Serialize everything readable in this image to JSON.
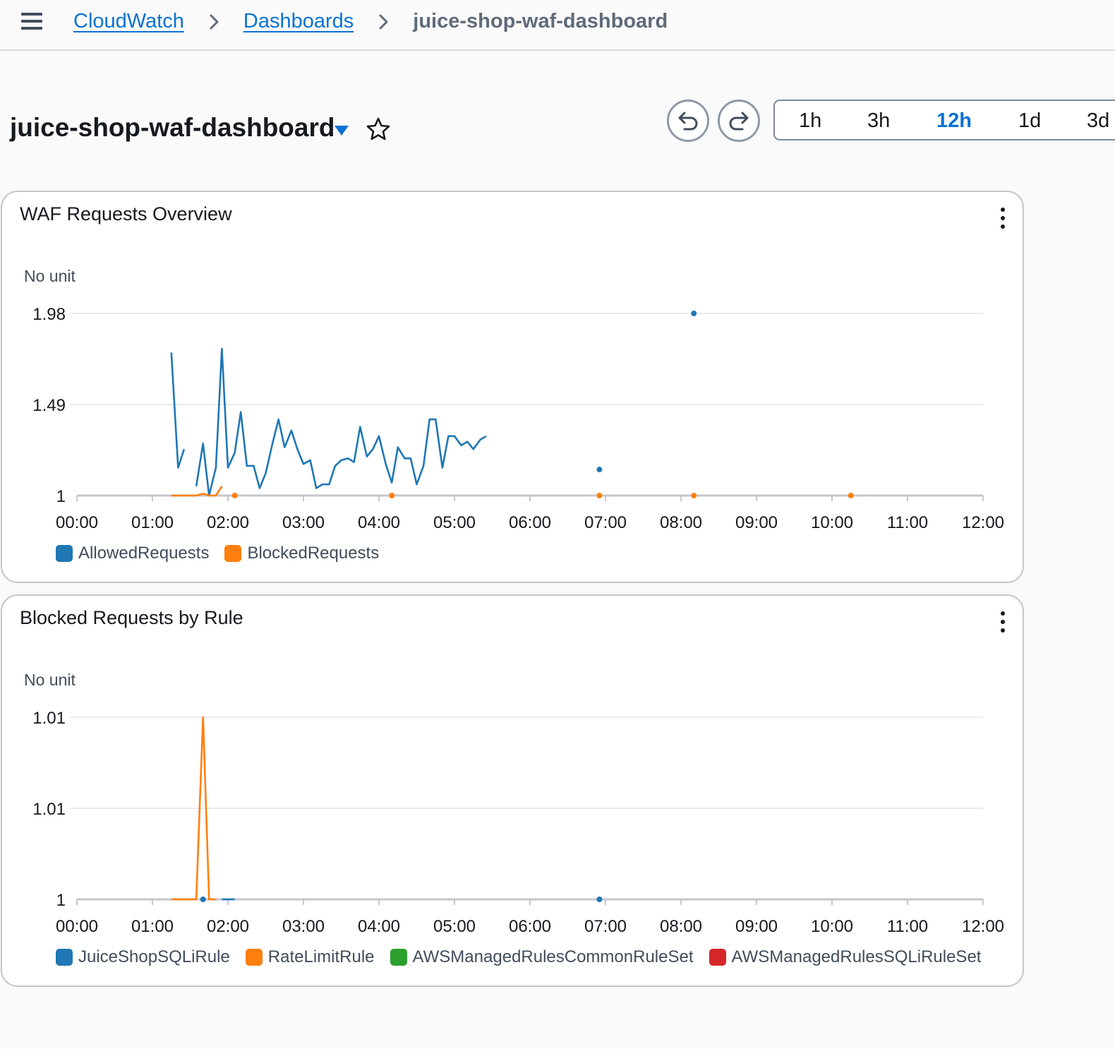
{
  "breadcrumb": {
    "items": [
      "CloudWatch",
      "Dashboards"
    ],
    "current": "juice-shop-waf-dashboard"
  },
  "dashboard": {
    "title": "juice-shop-waf-dashboard",
    "time_ranges": [
      "1h",
      "3h",
      "12h",
      "1d",
      "3d"
    ],
    "selected_range": "12h"
  },
  "colors": {
    "link": "#0972d3",
    "series_blue": "#1f77b4",
    "series_orange": "#ff7f0e",
    "series_green": "#2ca02c",
    "series_red": "#d62728"
  },
  "icons": [
    "menu-icon",
    "chevron-right-icon",
    "caret-down-icon",
    "star-icon",
    "undo-icon",
    "redo-icon",
    "more-vertical-icon"
  ],
  "widgets": [
    {
      "title": "WAF Requests Overview",
      "unit": "No unit",
      "chart_data": {
        "type": "line",
        "x_ticks": [
          "00:00",
          "01:00",
          "02:00",
          "03:00",
          "04:00",
          "05:00",
          "06:00",
          "07:00",
          "08:00",
          "09:00",
          "10:00",
          "11:00",
          "12:00"
        ],
        "y_ticks": [
          "1",
          "1.49",
          "1.98"
        ],
        "ylim": [
          1,
          1.98
        ],
        "xlim_hours": [
          0,
          12
        ],
        "grid": true,
        "legend": "bottom-left",
        "series": [
          {
            "name": "AllowedRequests",
            "color": "#1f77b4",
            "segments": [
              [
                [
                  1.25,
                  1.77
                ],
                [
                  1.34,
                  1.15
                ],
                [
                  1.42,
                  1.25
                ]
              ],
              [
                [
                  1.58,
                  1.05
                ],
                [
                  1.67,
                  1.28
                ],
                [
                  1.75,
                  1.0
                ],
                [
                  1.84,
                  1.15
                ],
                [
                  1.92,
                  1.79
                ],
                [
                  2.0,
                  1.15
                ],
                [
                  2.09,
                  1.23
                ],
                [
                  2.17,
                  1.45
                ],
                [
                  2.25,
                  1.16
                ],
                [
                  2.34,
                  1.16
                ],
                [
                  2.42,
                  1.04
                ],
                [
                  2.5,
                  1.12
                ],
                [
                  2.59,
                  1.28
                ],
                [
                  2.67,
                  1.41
                ],
                [
                  2.75,
                  1.26
                ],
                [
                  2.84,
                  1.35
                ],
                [
                  2.92,
                  1.25
                ],
                [
                  3.0,
                  1.17
                ],
                [
                  3.09,
                  1.19
                ],
                [
                  3.17,
                  1.04
                ],
                [
                  3.25,
                  1.06
                ],
                [
                  3.34,
                  1.06
                ],
                [
                  3.42,
                  1.16
                ],
                [
                  3.5,
                  1.19
                ],
                [
                  3.59,
                  1.2
                ],
                [
                  3.67,
                  1.18
                ],
                [
                  3.75,
                  1.37
                ],
                [
                  3.84,
                  1.21
                ],
                [
                  3.92,
                  1.25
                ],
                [
                  4.0,
                  1.32
                ],
                [
                  4.09,
                  1.17
                ],
                [
                  4.17,
                  1.07
                ],
                [
                  4.25,
                  1.26
                ],
                [
                  4.34,
                  1.2
                ],
                [
                  4.42,
                  1.2
                ],
                [
                  4.5,
                  1.06
                ],
                [
                  4.59,
                  1.16
                ],
                [
                  4.67,
                  1.41
                ],
                [
                  4.75,
                  1.41
                ],
                [
                  4.84,
                  1.15
                ],
                [
                  4.92,
                  1.32
                ],
                [
                  5.0,
                  1.32
                ],
                [
                  5.09,
                  1.27
                ],
                [
                  5.17,
                  1.29
                ],
                [
                  5.25,
                  1.25
                ],
                [
                  5.34,
                  1.3
                ],
                [
                  5.42,
                  1.32
                ]
              ]
            ],
            "points": [
              [
                6.92,
                1.14
              ],
              [
                8.17,
                1.98
              ]
            ]
          },
          {
            "name": "BlockedRequests",
            "color": "#ff7f0e",
            "segments": [
              [
                [
                  1.25,
                  1.0
                ],
                [
                  1.58,
                  1.0
                ],
                [
                  1.67,
                  1.01
                ],
                [
                  1.75,
                  1.0
                ],
                [
                  1.84,
                  1.0
                ],
                [
                  1.92,
                  1.05
                ]
              ]
            ],
            "points": [
              [
                2.09,
                1.0
              ],
              [
                4.17,
                1.0
              ],
              [
                6.92,
                1.0
              ],
              [
                8.17,
                1.0
              ],
              [
                10.25,
                1.0
              ]
            ]
          }
        ]
      }
    },
    {
      "title": "Blocked Requests by Rule",
      "unit": "No unit",
      "chart_data": {
        "type": "line",
        "x_ticks": [
          "00:00",
          "01:00",
          "02:00",
          "03:00",
          "04:00",
          "05:00",
          "06:00",
          "07:00",
          "08:00",
          "09:00",
          "10:00",
          "11:00",
          "12:00"
        ],
        "y_ticks": [
          "1",
          "1.01",
          "1.01"
        ],
        "ylim": [
          1,
          1.01
        ],
        "xlim_hours": [
          0,
          12
        ],
        "grid": true,
        "legend": "bottom-left",
        "series": [
          {
            "name": "JuiceShopSQLiRule",
            "color": "#1f77b4",
            "segments": [
              [
                [
                  1.92,
                  1.0
                ],
                [
                  2.09,
                  1.0
                ]
              ]
            ],
            "points": [
              [
                1.67,
                1.0
              ],
              [
                6.92,
                1.0
              ]
            ]
          },
          {
            "name": "RateLimitRule",
            "color": "#ff7f0e",
            "segments": [
              [
                [
                  1.25,
                  1.0
                ],
                [
                  1.58,
                  1.0
                ],
                [
                  1.67,
                  1.01
                ],
                [
                  1.75,
                  1.0
                ],
                [
                  1.84,
                  1.0
                ]
              ]
            ],
            "points": []
          },
          {
            "name": "AWSManagedRulesCommonRuleSet",
            "color": "#2ca02c",
            "segments": [],
            "points": []
          },
          {
            "name": "AWSManagedRulesSQLiRuleSet",
            "color": "#d62728",
            "segments": [],
            "points": []
          }
        ]
      }
    }
  ]
}
